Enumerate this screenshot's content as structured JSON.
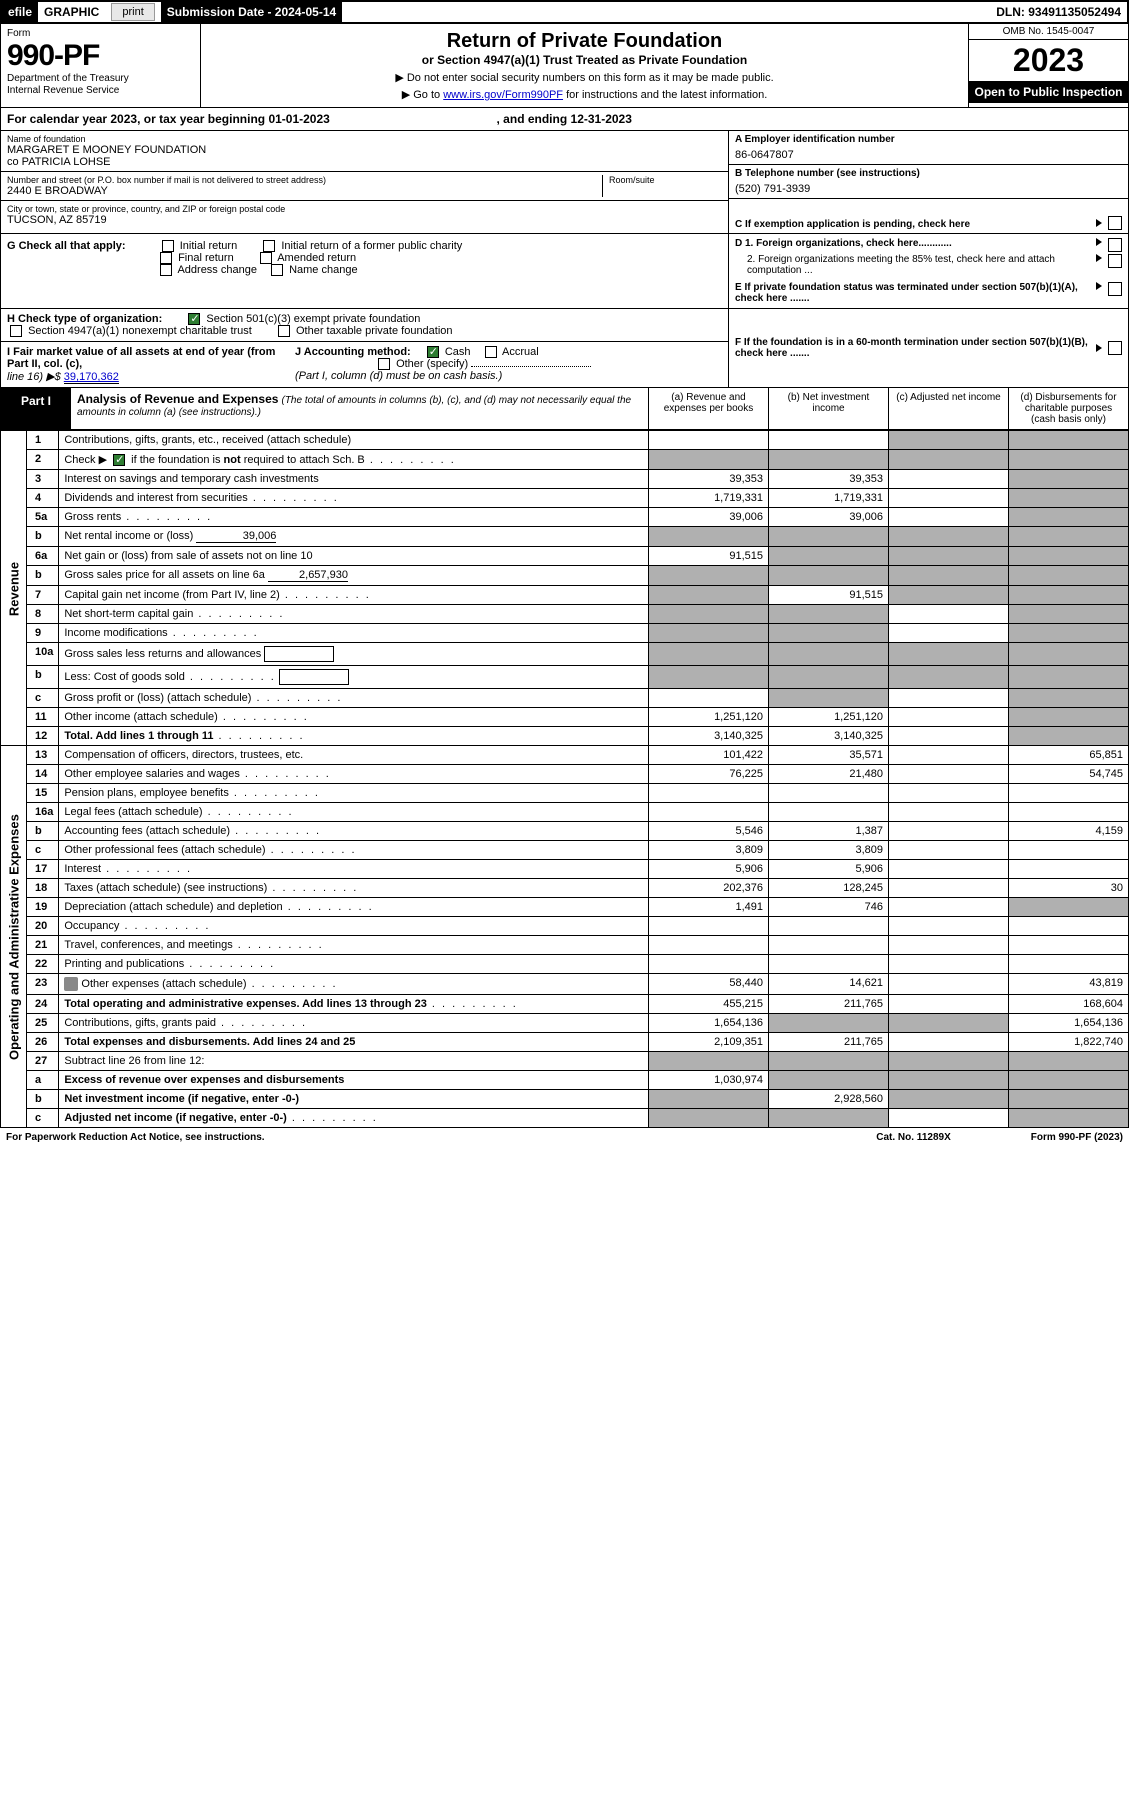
{
  "top_bar": {
    "efile": "efile",
    "graphic": "GRAPHIC",
    "print": "print",
    "sub_date_label": "Submission Date - 2024-05-14",
    "dln": "DLN: 93491135052494"
  },
  "header": {
    "form_label": "Form",
    "form_number": "990-PF",
    "dept": "Department of the Treasury",
    "irs": "Internal Revenue Service",
    "title": "Return of Private Foundation",
    "subtitle": "or Section 4947(a)(1) Trust Treated as Private Foundation",
    "instr1": "▶ Do not enter social security numbers on this form as it may be made public.",
    "instr2": "▶ Go to ",
    "instr2_link": "www.irs.gov/Form990PF",
    "instr2_tail": " for instructions and the latest information.",
    "omb": "OMB No. 1545-0047",
    "year": "2023",
    "inspect": "Open to Public Inspection"
  },
  "cal_year": {
    "text1": "For calendar year 2023, or tax year beginning 01-01-2023",
    "text2": ", and ending 12-31-2023"
  },
  "foundation": {
    "name_label": "Name of foundation",
    "name1": "MARGARET E MOONEY FOUNDATION",
    "name2": "co PATRICIA LOHSE",
    "addr_label": "Number and street (or P.O. box number if mail is not delivered to street address)",
    "addr": "2440 E BROADWAY",
    "room_label": "Room/suite",
    "city_label": "City or town, state or province, country, and ZIP or foreign postal code",
    "city": "TUCSON, AZ  85719",
    "ein_label": "A Employer identification number",
    "ein": "86-0647807",
    "phone_label": "B Telephone number (see instructions)",
    "phone": "(520) 791-3939",
    "c_label": "C If exemption application is pending, check here"
  },
  "section_g": {
    "label": "G Check all that apply:",
    "opts": [
      "Initial return",
      "Initial return of a former public charity",
      "Final return",
      "Amended return",
      "Address change",
      "Name change"
    ],
    "d1": "D 1. Foreign organizations, check here............",
    "d2": "2. Foreign organizations meeting the 85% test, check here and attach computation ...",
    "e": "E  If private foundation status was terminated under section 507(b)(1)(A), check here ......."
  },
  "section_h": {
    "label": "H Check type of organization:",
    "opt1": "Section 501(c)(3) exempt private foundation",
    "opt2": "Section 4947(a)(1) nonexempt charitable trust",
    "opt3": "Other taxable private foundation"
  },
  "section_i": {
    "label": "I Fair market value of all assets at end of year (from Part II, col. (c),",
    "line": "line 16) ▶$",
    "value": "39,170,362",
    "j_label": "J Accounting method:",
    "j_cash": "Cash",
    "j_accrual": "Accrual",
    "j_other": "Other (specify)",
    "j_note": "(Part I, column (d) must be on cash basis.)",
    "f": "F  If the foundation is in a 60-month termination under section 507(b)(1)(B), check here ......."
  },
  "part1": {
    "label": "Part I",
    "title": "Analysis of Revenue and Expenses",
    "note": "(The total of amounts in columns (b), (c), and (d) may not necessarily equal the amounts in column (a) (see instructions).)",
    "col_a": "(a)    Revenue and expenses per books",
    "col_b": "(b)    Net investment income",
    "col_c": "(c)   Adjusted net income",
    "col_d": "(d)   Disbursements for charitable purposes (cash basis only)"
  },
  "side_labels": {
    "rev": "Revenue",
    "exp": "Operating and Administrative Expenses"
  },
  "rows": [
    {
      "n": "1",
      "d": "Contributions, gifts, grants, etc., received (attach schedule)",
      "a": "",
      "b": "",
      "c": "s",
      "e": "s"
    },
    {
      "n": "2",
      "d": "Check ▶ ☑ if the foundation is not required to attach Sch. B",
      "dots": true,
      "a": "s",
      "b": "s",
      "c": "s",
      "e": "s"
    },
    {
      "n": "3",
      "d": "Interest on savings and temporary cash investments",
      "a": "39,353",
      "b": "39,353",
      "c": "",
      "e": "s"
    },
    {
      "n": "4",
      "d": "Dividends and interest from securities",
      "dots": true,
      "a": "1,719,331",
      "b": "1,719,331",
      "c": "",
      "e": "s"
    },
    {
      "n": "5a",
      "d": "Gross rents",
      "dots": true,
      "a": "39,006",
      "b": "39,006",
      "c": "",
      "e": "s"
    },
    {
      "n": "b",
      "d": "Net rental income or (loss)",
      "inline": "39,006",
      "a": "s",
      "b": "s",
      "c": "s",
      "e": "s"
    },
    {
      "n": "6a",
      "d": "Net gain or (loss) from sale of assets not on line 10",
      "a": "91,515",
      "b": "s",
      "c": "s",
      "e": "s"
    },
    {
      "n": "b",
      "d": "Gross sales price for all assets on line 6a",
      "inline": "2,657,930",
      "a": "s",
      "b": "s",
      "c": "s",
      "e": "s"
    },
    {
      "n": "7",
      "d": "Capital gain net income (from Part IV, line 2)",
      "dots": true,
      "a": "s",
      "b": "91,515",
      "c": "s",
      "e": "s"
    },
    {
      "n": "8",
      "d": "Net short-term capital gain",
      "dots": true,
      "a": "s",
      "b": "s",
      "c": "",
      "e": "s"
    },
    {
      "n": "9",
      "d": "Income modifications",
      "dots": true,
      "a": "s",
      "b": "s",
      "c": "",
      "e": "s"
    },
    {
      "n": "10a",
      "d": "Gross sales less returns and allowances",
      "box": true,
      "a": "s",
      "b": "s",
      "c": "s",
      "e": "s"
    },
    {
      "n": "b",
      "d": "Less: Cost of goods sold",
      "dots": true,
      "box": true,
      "a": "s",
      "b": "s",
      "c": "s",
      "e": "s"
    },
    {
      "n": "c",
      "d": "Gross profit or (loss) (attach schedule)",
      "dots": true,
      "a": "",
      "b": "s",
      "c": "",
      "e": "s"
    },
    {
      "n": "11",
      "d": "Other income (attach schedule)",
      "dots": true,
      "a": "1,251,120",
      "b": "1,251,120",
      "c": "",
      "e": "s"
    },
    {
      "n": "12",
      "d": "Total. Add lines 1 through 11",
      "dots": true,
      "bold": true,
      "a": "3,140,325",
      "b": "3,140,325",
      "c": "",
      "e": "s"
    },
    {
      "n": "13",
      "d": "Compensation of officers, directors, trustees, etc.",
      "a": "101,422",
      "b": "35,571",
      "c": "",
      "e": "65,851"
    },
    {
      "n": "14",
      "d": "Other employee salaries and wages",
      "dots": true,
      "a": "76,225",
      "b": "21,480",
      "c": "",
      "e": "54,745"
    },
    {
      "n": "15",
      "d": "Pension plans, employee benefits",
      "dots": true,
      "a": "",
      "b": "",
      "c": "",
      "e": ""
    },
    {
      "n": "16a",
      "d": "Legal fees (attach schedule)",
      "dots": true,
      "a": "",
      "b": "",
      "c": "",
      "e": ""
    },
    {
      "n": "b",
      "d": "Accounting fees (attach schedule)",
      "dots": true,
      "a": "5,546",
      "b": "1,387",
      "c": "",
      "e": "4,159"
    },
    {
      "n": "c",
      "d": "Other professional fees (attach schedule)",
      "dots": true,
      "a": "3,809",
      "b": "3,809",
      "c": "",
      "e": ""
    },
    {
      "n": "17",
      "d": "Interest",
      "dots": true,
      "a": "5,906",
      "b": "5,906",
      "c": "",
      "e": ""
    },
    {
      "n": "18",
      "d": "Taxes (attach schedule) (see instructions)",
      "dots": true,
      "a": "202,376",
      "b": "128,245",
      "c": "",
      "e": "30"
    },
    {
      "n": "19",
      "d": "Depreciation (attach schedule) and depletion",
      "dots": true,
      "a": "1,491",
      "b": "746",
      "c": "",
      "e": "s"
    },
    {
      "n": "20",
      "d": "Occupancy",
      "dots": true,
      "a": "",
      "b": "",
      "c": "",
      "e": ""
    },
    {
      "n": "21",
      "d": "Travel, conferences, and meetings",
      "dots": true,
      "a": "",
      "b": "",
      "c": "",
      "e": ""
    },
    {
      "n": "22",
      "d": "Printing and publications",
      "dots": true,
      "a": "",
      "b": "",
      "c": "",
      "e": ""
    },
    {
      "n": "23",
      "d": "Other expenses (attach schedule)",
      "dots": true,
      "icon": true,
      "a": "58,440",
      "b": "14,621",
      "c": "",
      "e": "43,819"
    },
    {
      "n": "24",
      "d": "Total operating and administrative expenses. Add lines 13 through 23",
      "dots": true,
      "bold": true,
      "a": "455,215",
      "b": "211,765",
      "c": "",
      "e": "168,604"
    },
    {
      "n": "25",
      "d": "Contributions, gifts, grants paid",
      "dots": true,
      "a": "1,654,136",
      "b": "s",
      "c": "s",
      "e": "1,654,136"
    },
    {
      "n": "26",
      "d": "Total expenses and disbursements. Add lines 24 and 25",
      "bold": true,
      "a": "2,109,351",
      "b": "211,765",
      "c": "",
      "e": "1,822,740"
    },
    {
      "n": "27",
      "d": "Subtract line 26 from line 12:",
      "a": "s",
      "b": "s",
      "c": "s",
      "e": "s"
    },
    {
      "n": "a",
      "d": "Excess of revenue over expenses and disbursements",
      "bold": true,
      "a": "1,030,974",
      "b": "s",
      "c": "s",
      "e": "s"
    },
    {
      "n": "b",
      "d": "Net investment income (if negative, enter -0-)",
      "bold": true,
      "a": "s",
      "b": "2,928,560",
      "c": "s",
      "e": "s"
    },
    {
      "n": "c",
      "d": "Adjusted net income (if negative, enter -0-)",
      "dots": true,
      "bold": true,
      "a": "s",
      "b": "s",
      "c": "",
      "e": "s"
    }
  ],
  "footer": {
    "left": "For Paperwork Reduction Act Notice, see instructions.",
    "mid": "Cat. No. 11289X",
    "right": "Form 990-PF (2023)"
  },
  "colors": {
    "shade": "#b0b0b0",
    "link": "#0000cc",
    "check": "#2e7d32"
  }
}
